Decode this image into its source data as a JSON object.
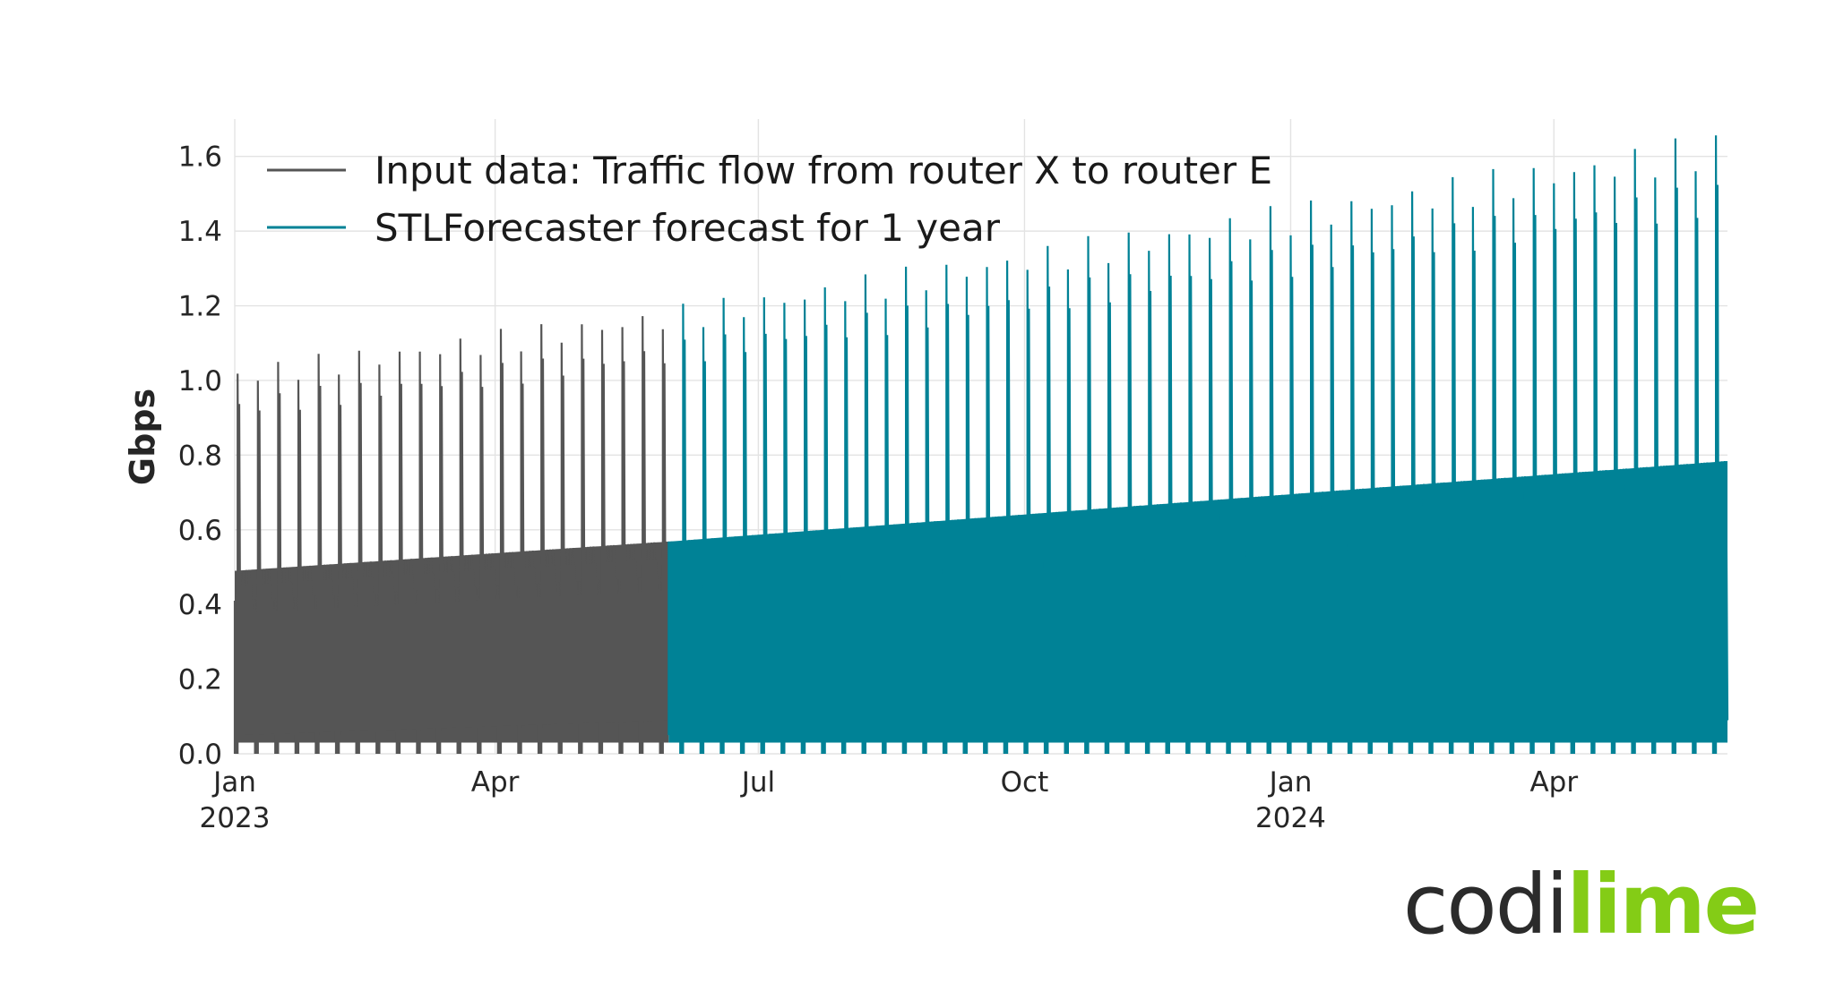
{
  "chart_data": {
    "type": "line",
    "ylabel": "Gbps",
    "xlabel": "",
    "ylim": [
      0.0,
      1.7
    ],
    "xlim": [
      "2023-01-01",
      "2024-05-31"
    ],
    "y_ticks": [
      "0.0",
      "0.2",
      "0.4",
      "0.6",
      "0.8",
      "1.0",
      "1.2",
      "1.4",
      "1.6"
    ],
    "x_ticks": [
      {
        "date": "2023-01-01",
        "label": "Jan",
        "year": "2023"
      },
      {
        "date": "2023-04-01",
        "label": "Apr",
        "year": ""
      },
      {
        "date": "2023-07-01",
        "label": "Jul",
        "year": ""
      },
      {
        "date": "2023-10-01",
        "label": "Oct",
        "year": ""
      },
      {
        "date": "2024-01-01",
        "label": "Jan",
        "year": "2024"
      },
      {
        "date": "2024-04-01",
        "label": "Apr",
        "year": ""
      }
    ],
    "grid": true,
    "legend_position": "top-left",
    "series": [
      {
        "name": "Input data: Traffic flow from router X to router E",
        "color": "#555555",
        "start": "2023-01-01",
        "end": "2023-05-31",
        "weekly_peak_start": 1.04,
        "weekly_peak_end": 1.2,
        "daily_high_start": 0.5,
        "daily_high_end": 0.58,
        "daily_low": 0.0
      },
      {
        "name": "STLForecaster forecast for 1 year",
        "color": "#008296",
        "start": "2023-05-31",
        "end": "2024-05-31",
        "weekly_peak_start": 1.2,
        "weekly_peak_end": 1.67,
        "daily_high_start": 0.58,
        "daily_high_end": 0.8,
        "daily_low": 0.0
      }
    ]
  },
  "logo": {
    "part1": "codi",
    "part2": "lime",
    "color1": "#2b2b2b",
    "color2": "#84cc16"
  }
}
